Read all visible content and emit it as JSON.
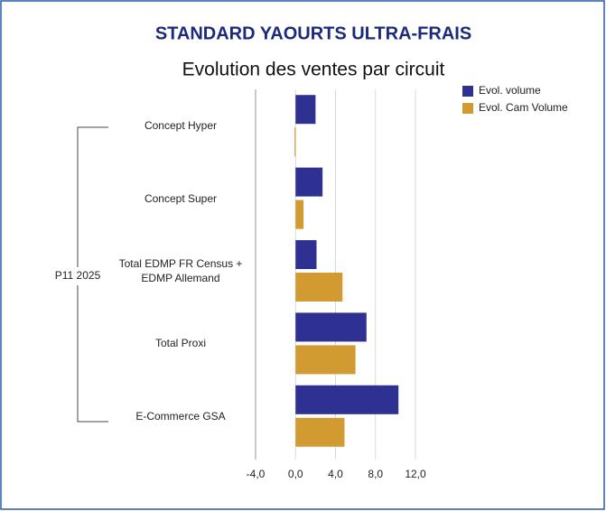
{
  "chart_data": {
    "type": "bar",
    "orientation": "horizontal",
    "title": "STANDARD YAOURTS ULTRA-FRAIS",
    "subtitle": "Evolution des ventes par circuit",
    "group_label": "P11 2025",
    "categories": [
      "Concept Hyper",
      "Concept Super",
      "Total EDMP FR Census + EDMP Allemand",
      "Total Proxi",
      "E-Commerce GSA"
    ],
    "series": [
      {
        "name": "Evol. volume",
        "color": "#2e3192",
        "values": [
          2.0,
          2.7,
          2.1,
          7.1,
          10.3
        ]
      },
      {
        "name": "Evol. Cam Volume",
        "color": "#d19b32",
        "values": [
          -0.1,
          0.8,
          4.7,
          6.0,
          4.9
        ]
      }
    ],
    "xlim": [
      -4,
      12
    ],
    "xticks": [
      {
        "value": -4,
        "label": "-4,0"
      },
      {
        "value": 0,
        "label": "0,0"
      },
      {
        "value": 4,
        "label": "4,0"
      },
      {
        "value": 8,
        "label": "8,0"
      },
      {
        "value": 12,
        "label": "12,0"
      }
    ],
    "grid": true,
    "legend": "top-right"
  }
}
